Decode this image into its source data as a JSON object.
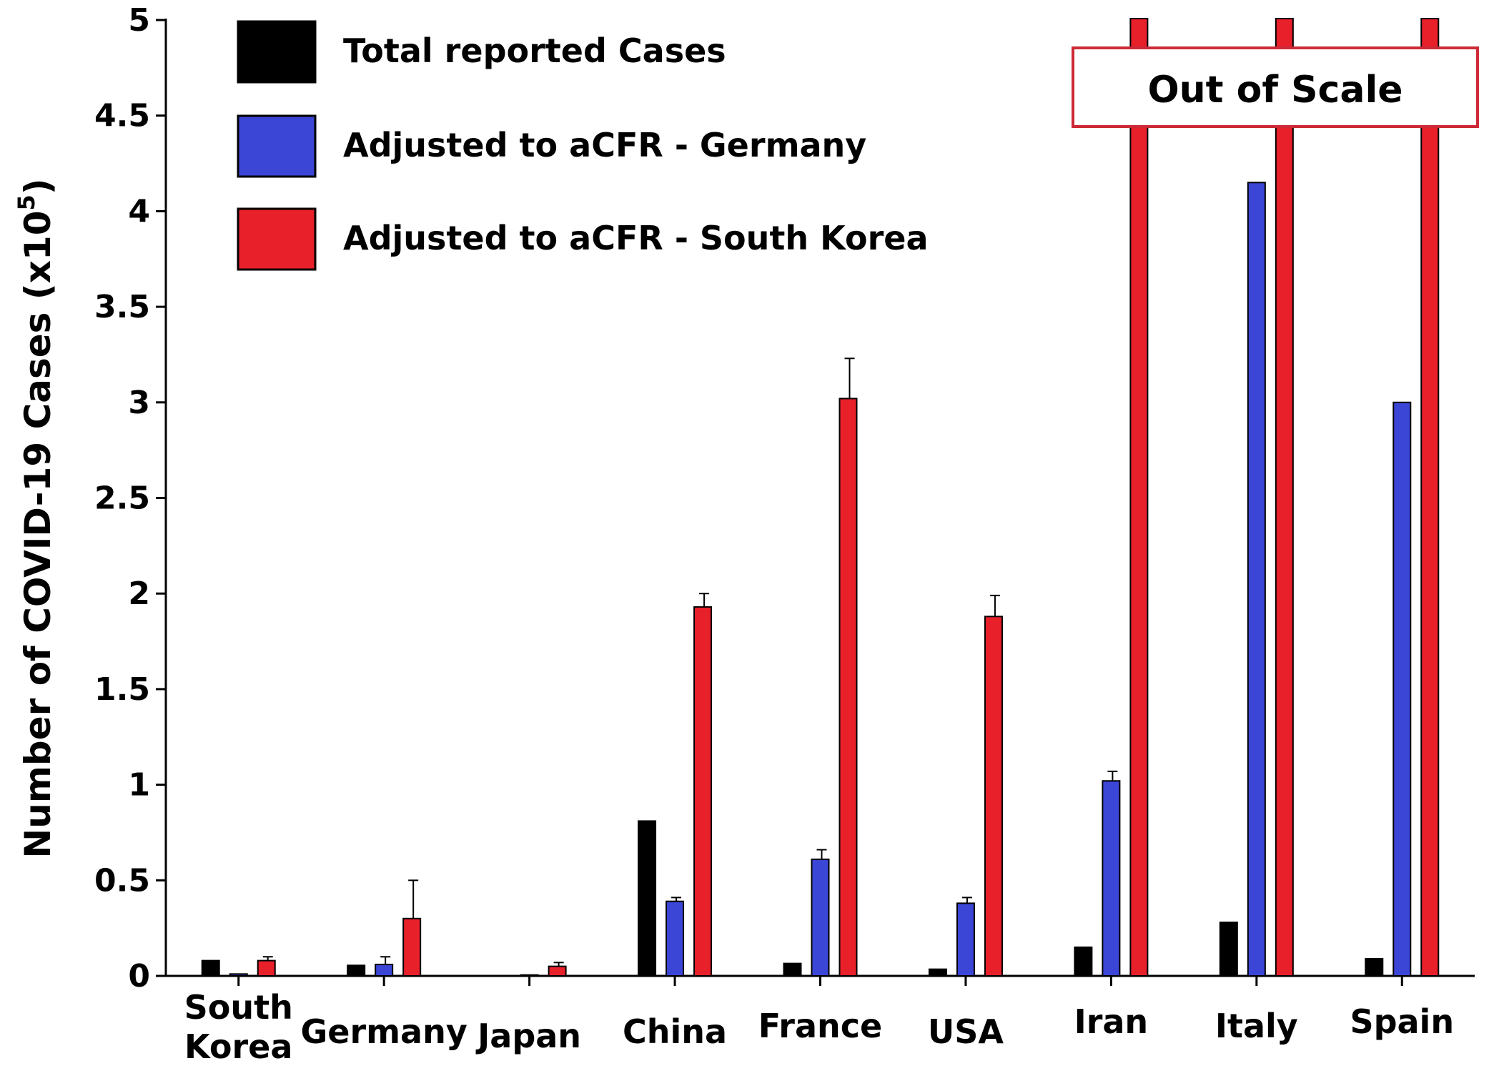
{
  "chart_data": {
    "type": "bar",
    "categories": [
      "South Korea",
      "Germany",
      "Japan",
      "China",
      "France",
      "USA",
      "Iran",
      "Italy",
      "Spain"
    ],
    "category_lines": [
      [
        "South",
        "Korea"
      ],
      [
        "Germany"
      ],
      [
        "Japan"
      ],
      [
        "China"
      ],
      [
        "France"
      ],
      [
        "USA"
      ],
      [
        "Iran"
      ],
      [
        "Italy"
      ],
      [
        "Spain"
      ]
    ],
    "series": [
      {
        "name": "Total reported Cases",
        "color": "#000000",
        "values": [
          0.08,
          0.055,
          0.0,
          0.81,
          0.065,
          0.035,
          0.15,
          0.28,
          0.09
        ],
        "errors": [
          0,
          0,
          0,
          0,
          0,
          0,
          0,
          0,
          0
        ],
        "out_of_scale": [
          false,
          false,
          false,
          false,
          false,
          false,
          false,
          false,
          false
        ]
      },
      {
        "name": "Adjusted to aCFR - Germany",
        "color": "#3b46d6",
        "values": [
          0.01,
          0.06,
          0.005,
          0.39,
          0.61,
          0.38,
          1.02,
          4.15,
          3.0
        ],
        "errors": [
          0,
          0.04,
          0,
          0.02,
          0.05,
          0.03,
          0.05,
          0,
          0
        ],
        "out_of_scale": [
          false,
          false,
          false,
          false,
          false,
          false,
          false,
          false,
          false
        ]
      },
      {
        "name": "Adjusted to aCFR - South Korea",
        "color": "#e8202a",
        "values": [
          0.08,
          0.3,
          0.05,
          1.93,
          3.02,
          1.88,
          5.0,
          5.0,
          5.0
        ],
        "errors": [
          0.02,
          0.2,
          0.02,
          0.07,
          0.21,
          0.11,
          0,
          0,
          0
        ],
        "out_of_scale": [
          false,
          false,
          false,
          false,
          false,
          false,
          true,
          true,
          true
        ]
      }
    ],
    "ylabel": "Number of COVID-19 Cases  (x10",
    "ylabel_exponent": "5",
    "ylabel_close": ")",
    "ylim": [
      0,
      5
    ],
    "yticks": [
      0,
      0.5,
      1,
      1.5,
      2,
      2.5,
      3,
      3.5,
      4,
      4.5,
      5
    ],
    "ytick_labels": [
      "0",
      "0.5",
      "1",
      "1.5",
      "2",
      "2.5",
      "3",
      "3.5",
      "4",
      "4.5",
      "5"
    ],
    "grid": false,
    "legend_position": "top-left",
    "annotation": "Out of Scale",
    "annotation_color": "#cc2a36"
  }
}
